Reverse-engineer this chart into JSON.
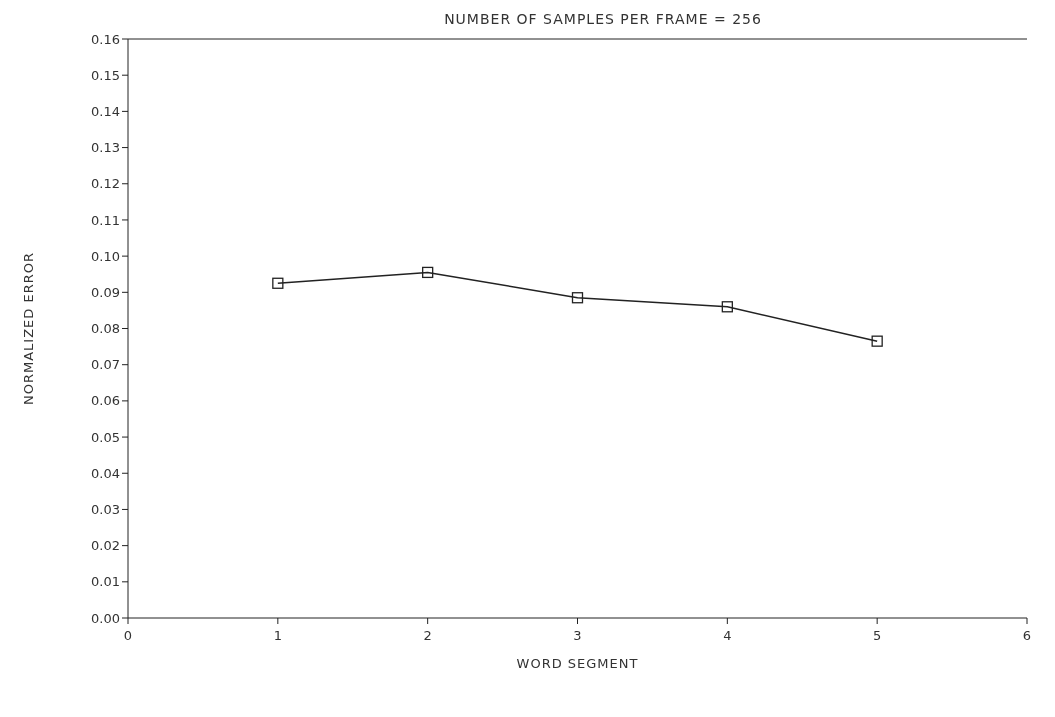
{
  "chart_data": {
    "type": "line",
    "title": "NUMBER OF SAMPLES PER FRAME = 256",
    "xlabel": "WORD SEGMENT",
    "ylabel": "NORMALIZED ERROR",
    "x": [
      1,
      2,
      3,
      4,
      5
    ],
    "series": [
      {
        "color": "#222222",
        "values": [
          0.0925,
          0.0955,
          0.0885,
          0.086,
          0.0765
        ]
      }
    ],
    "xlim": [
      0,
      6
    ],
    "xticks": [
      0,
      1,
      2,
      3,
      4,
      5,
      6
    ],
    "ylim": [
      0,
      0.16
    ],
    "yticks": [
      {
        "value": 0,
        "label": "0.00"
      },
      {
        "value": 0.01,
        "label": "0.01"
      },
      {
        "value": 0.02,
        "label": "0.02"
      },
      {
        "value": 0.03,
        "label": "0.03"
      },
      {
        "value": 0.04,
        "label": "0.04"
      },
      {
        "value": 0.05,
        "label": "0.05"
      },
      {
        "value": 0.06,
        "label": "0.06"
      },
      {
        "value": 0.07,
        "label": "0.07"
      },
      {
        "value": 0.08,
        "label": "0.08"
      },
      {
        "value": 0.09,
        "label": "0.09"
      },
      {
        "value": 0.1,
        "label": "0.10"
      },
      {
        "value": 0.11,
        "label": "0.11"
      },
      {
        "value": 0.12,
        "label": "0.12"
      },
      {
        "value": 0.13,
        "label": "0.13"
      },
      {
        "value": 0.14,
        "label": "0.14"
      },
      {
        "value": 0.15,
        "label": "0.15"
      },
      {
        "value": 0.16,
        "label": "0.16"
      }
    ],
    "marker": "square",
    "line_style": "solid",
    "grid": false,
    "legend": false
  }
}
